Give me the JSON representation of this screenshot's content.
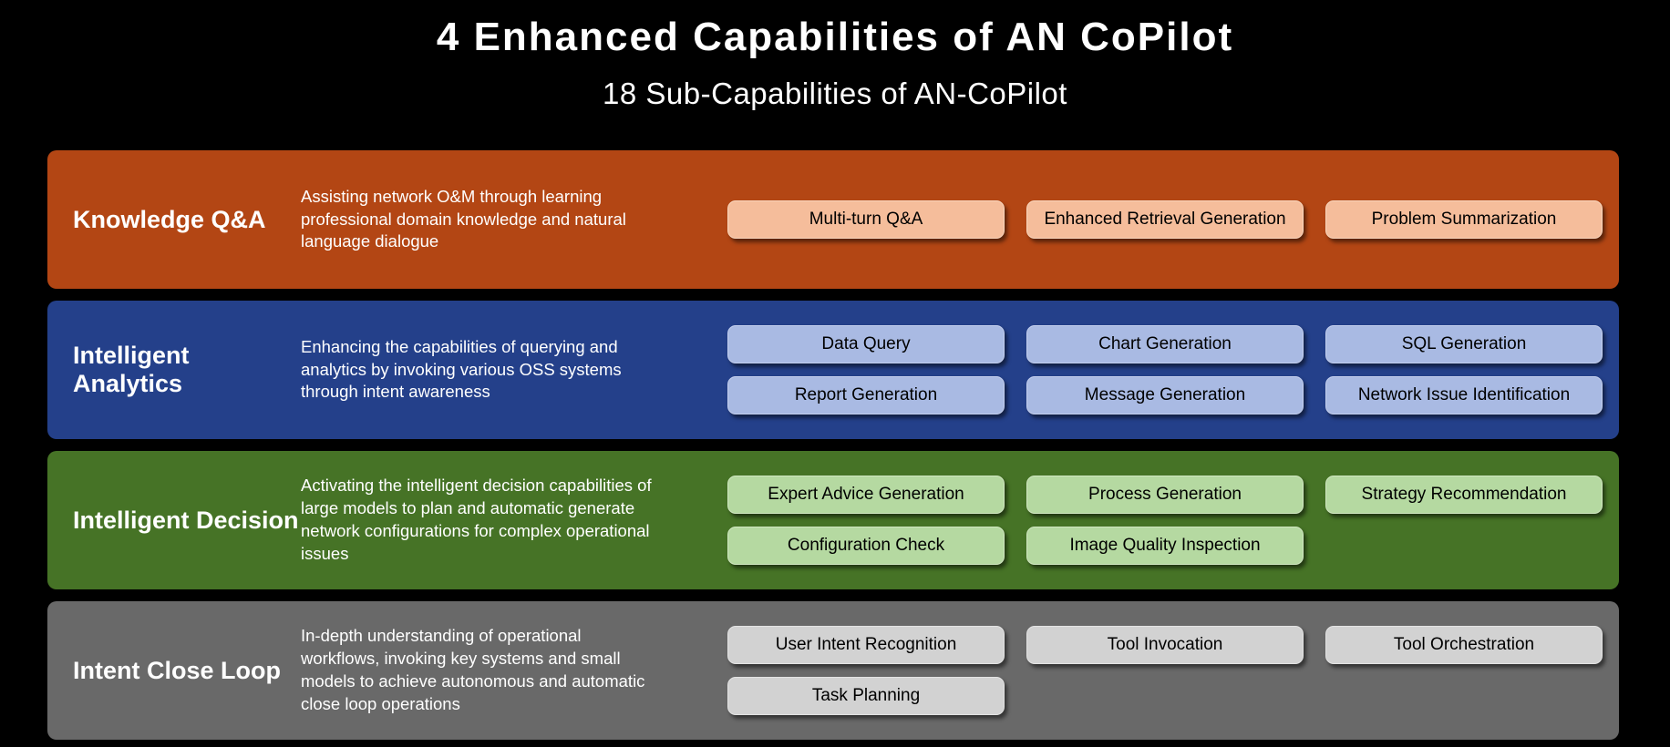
{
  "header": {
    "title": "4 Enhanced Capabilities of AN CoPilot",
    "subtitle": "18 Sub-Capabilities of AN-CoPilot"
  },
  "colors": {
    "background": "#000000",
    "text_light": "#ffffff",
    "chip_text": "#000000"
  },
  "rows": [
    {
      "title": "Knowledge Q&A",
      "description": "Assisting network O&M through learning\nprofessional domain knowledge and natural\nlanguage dialogue",
      "colors": {
        "bg": "#b34614",
        "chip_bg": "#f5bd9b",
        "chip_border": "#f9d6bd"
      },
      "chips": [
        "Multi-turn Q&A",
        "Enhanced Retrieval Generation",
        "Problem Summarization"
      ]
    },
    {
      "title": "Intelligent Analytics",
      "description": "Enhancing the capabilities of querying and\nanalytics by invoking various OSS systems\nthrough intent awareness",
      "colors": {
        "bg": "#24408a",
        "chip_bg": "#a9bae3",
        "chip_border": "#c4cfee"
      },
      "chips": [
        "Data Query",
        "Chart Generation",
        "SQL Generation",
        "Report Generation",
        "Message Generation",
        "Network Issue Identification"
      ]
    },
    {
      "title": "Intelligent Decision",
      "description": "Activating the intelligent decision capabilities of\nlarge models to plan and automatic generate\nnetwork configurations for complex operational\nissues",
      "colors": {
        "bg": "#467326",
        "chip_bg": "#b5d9a1",
        "chip_border": "#d0e7c1"
      },
      "chips": [
        "Expert Advice Generation",
        "Process Generation",
        "Strategy Recommendation",
        "Configuration Check",
        "Image Quality Inspection"
      ]
    },
    {
      "title": "Intent Close Loop",
      "description": "In-depth understanding of operational\nworkflows, invoking key systems and small\nmodels to achieve autonomous and automatic\nclose loop operations",
      "colors": {
        "bg": "#696969",
        "chip_bg": "#d2d2d2",
        "chip_border": "#e3e3e3"
      },
      "chips": [
        "User Intent Recognition",
        "Tool Invocation",
        "Tool Orchestration",
        "Task Planning"
      ]
    }
  ]
}
